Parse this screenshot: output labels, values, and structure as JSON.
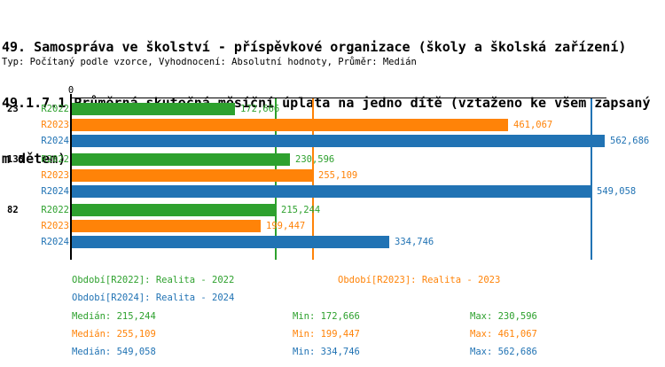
{
  "title_lines": [
    "49. Samospráva ve školství - příspěvkové organizace (školy a školská zařízení)",
    "49.1.7.1 Průměrná skutečná měsíční úplata na jedno dítě (vztaženo ke všem zapsaný",
    "m dětem)"
  ],
  "subtitle": "Typ: Počítaný podle vzorce, Vyhodnocení: Absolutní hodnoty, Průměr: Medián",
  "colors": {
    "green": "#2EA12E",
    "orange": "#FF8308",
    "blue": "#2173B4",
    "axis": "#000000"
  },
  "chart_data": {
    "type": "bar",
    "orientation": "horizontal",
    "origin_label": "0",
    "xlim": [
      0,
      562686
    ],
    "series_order": [
      "R2022",
      "R2023",
      "R2024"
    ],
    "groups": [
      {
        "category": "23",
        "bars": [
          {
            "series": "R2022",
            "value": 172666,
            "display": "172,666",
            "color_key": "green"
          },
          {
            "series": "R2023",
            "value": 461067,
            "display": "461,067",
            "color_key": "orange"
          },
          {
            "series": "R2024",
            "value": 562686,
            "display": "562,686",
            "color_key": "blue"
          }
        ]
      },
      {
        "category": "135",
        "bars": [
          {
            "series": "R2022",
            "value": 230596,
            "display": "230,596",
            "color_key": "green"
          },
          {
            "series": "R2023",
            "value": 255109,
            "display": "255,109",
            "color_key": "orange"
          },
          {
            "series": "R2024",
            "value": 549058,
            "display": "549,058",
            "color_key": "blue"
          }
        ]
      },
      {
        "category": "82",
        "bars": [
          {
            "series": "R2022",
            "value": 215244,
            "display": "215,244",
            "color_key": "green"
          },
          {
            "series": "R2023",
            "value": 199447,
            "display": "199,447",
            "color_key": "orange"
          },
          {
            "series": "R2024",
            "value": 334746,
            "display": "334,746",
            "color_key": "blue"
          }
        ]
      }
    ],
    "median_lines": [
      {
        "value": 215244,
        "color_key": "green"
      },
      {
        "value": 255109,
        "color_key": "orange"
      },
      {
        "value": 549058,
        "color_key": "blue"
      }
    ]
  },
  "legend": [
    {
      "label": "Období[R2022]: Realita - 2022",
      "color_key": "green",
      "row": 0,
      "col": 0
    },
    {
      "label": "Období[R2023]: Realita - 2023",
      "color_key": "orange",
      "row": 0,
      "col": 1
    },
    {
      "label": "Období[R2024]: Realita - 2024",
      "color_key": "blue",
      "row": 1,
      "col": 0
    }
  ],
  "stats": [
    {
      "color_key": "green",
      "cells": [
        "Medián: 215,244",
        "Min: 172,666",
        "Max: 230,596"
      ]
    },
    {
      "color_key": "orange",
      "cells": [
        "Medián: 255,109",
        "Min: 199,447",
        "Max: 461,067"
      ]
    },
    {
      "color_key": "blue",
      "cells": [
        "Medián: 549,058",
        "Min: 334,746",
        "Max: 562,686"
      ]
    }
  ]
}
